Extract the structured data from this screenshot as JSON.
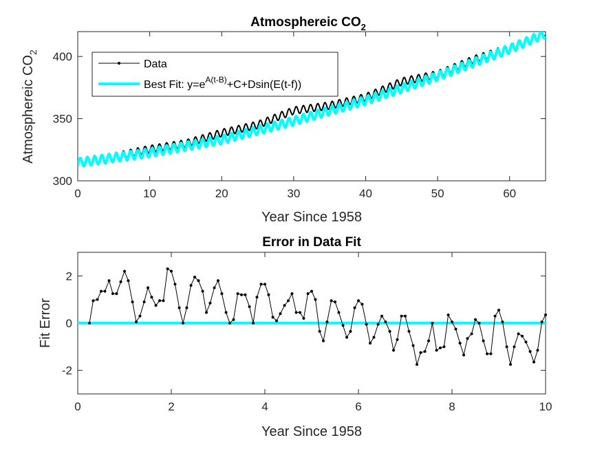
{
  "chart_data": [
    {
      "type": "line",
      "title_main": "Atmosphereic CO",
      "title_sub": "2",
      "xlabel": "Year Since 1958",
      "ylabel_main": "Atmosphereic CO",
      "ylabel_sub": "2",
      "xlim": [
        0,
        65
      ],
      "ylim": [
        300,
        420
      ],
      "xticks": [
        0,
        10,
        20,
        30,
        40,
        50,
        60
      ],
      "yticks": [
        300,
        350,
        400
      ],
      "grid": false,
      "legend_position": "top-left",
      "legend": {
        "data_label": "Data",
        "fit_prefix": "Best Fit: y=e",
        "fit_sup": "A(t-B)",
        "fit_suffix": "+C+Dsin(E(t-f))"
      },
      "colors": {
        "data": "#000000",
        "fit": "#00ffff"
      },
      "series": [
        {
          "name": "Data",
          "sampling": "monthly",
          "x_start": 0.25,
          "x_end": 65,
          "x_step": 0.0833,
          "y_at_x": {
            "0.25": 315.7,
            "5": 319.5,
            "10": 325.5,
            "15": 330.0,
            "20": 338.5,
            "25": 345.0,
            "30": 356.5,
            "35": 360.5,
            "40": 367.2,
            "45": 379.8,
            "50": 385.6,
            "55": 397.5,
            "60": 406.8,
            "65": 419.5
          },
          "seasonal_amplitude": 3
        },
        {
          "name": "Best Fit: y=e^(A(t-B))+C+Dsin(E(t-f))",
          "model": "y = e^(A(t-B)) + C + D sin(E(t-f))",
          "x_start": 0,
          "x_end": 65,
          "y_at_x": {
            "0": 314.5,
            "10": 322.5,
            "20": 333.0,
            "30": 348.0,
            "40": 364.5,
            "50": 384.0,
            "60": 406.0,
            "65": 418.5
          },
          "seasonal_amplitude": 3.4
        }
      ]
    },
    {
      "type": "line",
      "title": "Error in Data Fit",
      "xlabel": "Year Since 1958",
      "ylabel": "Fit Error",
      "xlim": [
        0,
        10
      ],
      "ylim": [
        -3,
        3
      ],
      "xticks": [
        0,
        2,
        4,
        6,
        8,
        10
      ],
      "yticks": [
        -2,
        0,
        2
      ],
      "grid": false,
      "colors": {
        "data": "#000000",
        "zero_line": "#00ffff"
      },
      "series": [
        {
          "name": "Fit Error",
          "x": [
            0.25,
            0.33,
            0.42,
            0.5,
            0.58,
            0.67,
            0.75,
            0.83,
            0.92,
            1.0,
            1.08,
            1.17,
            1.25,
            1.33,
            1.42,
            1.5,
            1.58,
            1.67,
            1.75,
            1.83,
            1.92,
            2.0,
            2.08,
            2.17,
            2.25,
            2.33,
            2.42,
            2.5,
            2.58,
            2.67,
            2.75,
            2.83,
            2.92,
            3.0,
            3.08,
            3.17,
            3.25,
            3.33,
            3.42,
            3.5,
            3.58,
            3.67,
            3.75,
            3.83,
            3.92,
            4.0,
            4.08,
            4.17,
            4.25,
            4.33,
            4.42,
            4.5,
            4.58,
            4.67,
            4.75,
            4.83,
            4.92,
            5.0,
            5.08,
            5.17,
            5.25,
            5.33,
            5.42,
            5.5,
            5.58,
            5.67,
            5.75,
            5.83,
            5.92,
            6.0,
            6.08,
            6.17,
            6.25,
            6.33,
            6.42,
            6.5,
            6.58,
            6.67,
            6.75,
            6.83,
            6.92,
            7.0,
            7.08,
            7.17,
            7.25,
            7.33,
            7.42,
            7.5,
            7.58,
            7.67,
            7.75,
            7.83,
            7.92,
            8.0,
            8.08,
            8.17,
            8.25,
            8.33,
            8.42,
            8.5,
            8.58,
            8.67,
            8.75,
            8.83,
            8.92,
            9.0,
            9.08,
            9.17,
            9.25,
            9.33,
            9.42,
            9.5,
            9.58,
            9.67,
            9.75,
            9.83,
            9.92,
            10.0
          ],
          "y": [
            0.0,
            0.95,
            1.0,
            1.35,
            1.35,
            1.8,
            1.25,
            1.25,
            1.75,
            2.2,
            1.8,
            0.9,
            0.05,
            0.3,
            0.9,
            1.5,
            1.1,
            0.75,
            0.95,
            0.95,
            2.3,
            2.2,
            1.65,
            0.65,
            0.0,
            0.65,
            1.6,
            1.95,
            1.8,
            1.35,
            0.45,
            0.85,
            1.5,
            1.8,
            1.25,
            0.45,
            0.0,
            0.15,
            1.25,
            1.2,
            1.2,
            0.7,
            0.0,
            1.1,
            1.65,
            1.65,
            1.2,
            0.25,
            0.1,
            0.4,
            0.75,
            0.95,
            1.25,
            0.45,
            0.45,
            0.2,
            1.25,
            1.35,
            1.0,
            -0.35,
            -0.75,
            0.05,
            0.95,
            0.9,
            0.45,
            -0.1,
            -0.6,
            -0.35,
            0.65,
            0.95,
            0.8,
            -0.05,
            -0.85,
            -0.6,
            -0.05,
            0.3,
            0.05,
            -0.35,
            -1.15,
            -0.7,
            0.3,
            0.3,
            -0.35,
            -0.95,
            -1.75,
            -1.25,
            -1.2,
            -0.75,
            0.0,
            -1.15,
            -1.05,
            -1.0,
            0.35,
            0.05,
            -0.25,
            -0.85,
            -1.35,
            -0.65,
            -0.45,
            0.15,
            0.0,
            -0.75,
            -1.3,
            -1.3,
            0.3,
            0.55,
            0.05,
            -1.0,
            -1.75,
            -1.0,
            -0.45,
            -0.55,
            -0.8,
            -1.2,
            -1.65,
            -1.15,
            0.05,
            0.35
          ]
        },
        {
          "name": "Zero Line",
          "x": [
            0,
            10
          ],
          "y": [
            0,
            0
          ]
        }
      ]
    }
  ]
}
